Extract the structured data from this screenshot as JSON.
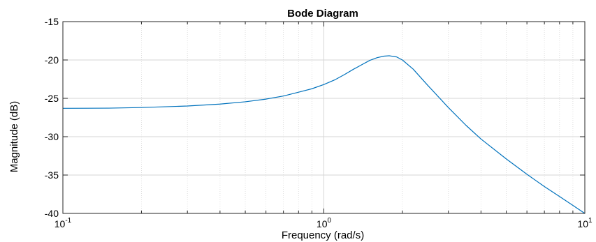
{
  "chart_data": {
    "type": "line",
    "title": "Bode Diagram",
    "xlabel": "Frequency  (rad/s)",
    "ylabel": "Magnitude (dB)",
    "xscale": "log",
    "xlim": [
      0.1,
      10
    ],
    "ylim": [
      -40,
      -15
    ],
    "grid": true,
    "x_ticks": [
      {
        "base": "10",
        "exp": "-1",
        "value": 0.1
      },
      {
        "base": "10",
        "exp": "0",
        "value": 1
      },
      {
        "base": "10",
        "exp": "1",
        "value": 10
      }
    ],
    "y_ticks": [
      "-15",
      "-20",
      "-25",
      "-30",
      "-35",
      "-40"
    ],
    "series": [
      {
        "color": "#0072bd",
        "x": [
          0.1,
          0.15,
          0.2,
          0.3,
          0.4,
          0.5,
          0.6,
          0.7,
          0.8,
          0.9,
          1.0,
          1.1,
          1.2,
          1.3,
          1.4,
          1.5,
          1.6,
          1.7,
          1.78,
          1.9,
          2.0,
          2.2,
          2.5,
          3.0,
          3.5,
          4.0,
          5.0,
          6.0,
          7.0,
          8.0,
          9.0,
          10.0
        ],
        "y": [
          -26.3,
          -26.28,
          -26.2,
          -26.0,
          -25.75,
          -25.45,
          -25.1,
          -24.7,
          -24.2,
          -23.75,
          -23.2,
          -22.6,
          -21.9,
          -21.2,
          -20.6,
          -20.05,
          -19.7,
          -19.5,
          -19.45,
          -19.6,
          -20.0,
          -21.2,
          -23.3,
          -26.2,
          -28.5,
          -30.3,
          -32.9,
          -34.9,
          -36.5,
          -37.8,
          -38.95,
          -40.0
        ]
      }
    ]
  }
}
